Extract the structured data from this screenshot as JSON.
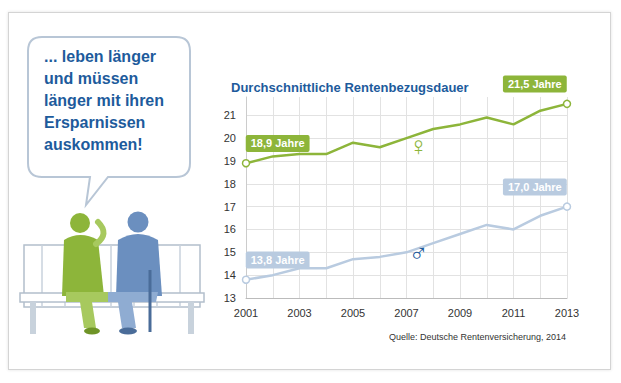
{
  "chart_data": {
    "type": "line",
    "title": "Durchschnittliche Rentenbezugsdauer",
    "source": "Quelle: Deutsche Rentenversicherung, 2014",
    "annotations": [
      "... leben länger",
      "und müssen",
      "länger mit ihren",
      "Ersparnissen",
      "auskommen!"
    ],
    "categories": [
      "2001",
      null,
      "2003",
      null,
      "2005",
      null,
      "2007",
      null,
      "2009",
      null,
      "2011",
      null,
      "2013"
    ],
    "series": [
      {
        "name": "♀",
        "color": "#8db53a",
        "values": [
          18.9,
          19.2,
          19.3,
          19.3,
          19.8,
          19.6,
          20.0,
          20.4,
          20.6,
          20.9,
          20.6,
          21.2,
          21.5
        ],
        "value_labels": [
          "18,9 Jahre",
          null,
          null,
          null,
          null,
          null,
          null,
          null,
          null,
          null,
          null,
          null,
          "21,5 Jahre"
        ]
      },
      {
        "name": "♂",
        "color": "#b9cbe0",
        "values": [
          13.8,
          14.0,
          14.3,
          14.3,
          14.7,
          14.8,
          15.0,
          15.4,
          15.8,
          16.2,
          16.0,
          16.6,
          17.0
        ],
        "value_labels": [
          "13,8 Jahre",
          null,
          null,
          null,
          null,
          null,
          null,
          null,
          null,
          null,
          null,
          null,
          "17,0 Jahre"
        ]
      }
    ],
    "ylim": [
      13,
      21.8
    ],
    "yticks": [
      13,
      14,
      15,
      16,
      17,
      18,
      19,
      20,
      21
    ],
    "grid": true,
    "data_labels": true
  }
}
